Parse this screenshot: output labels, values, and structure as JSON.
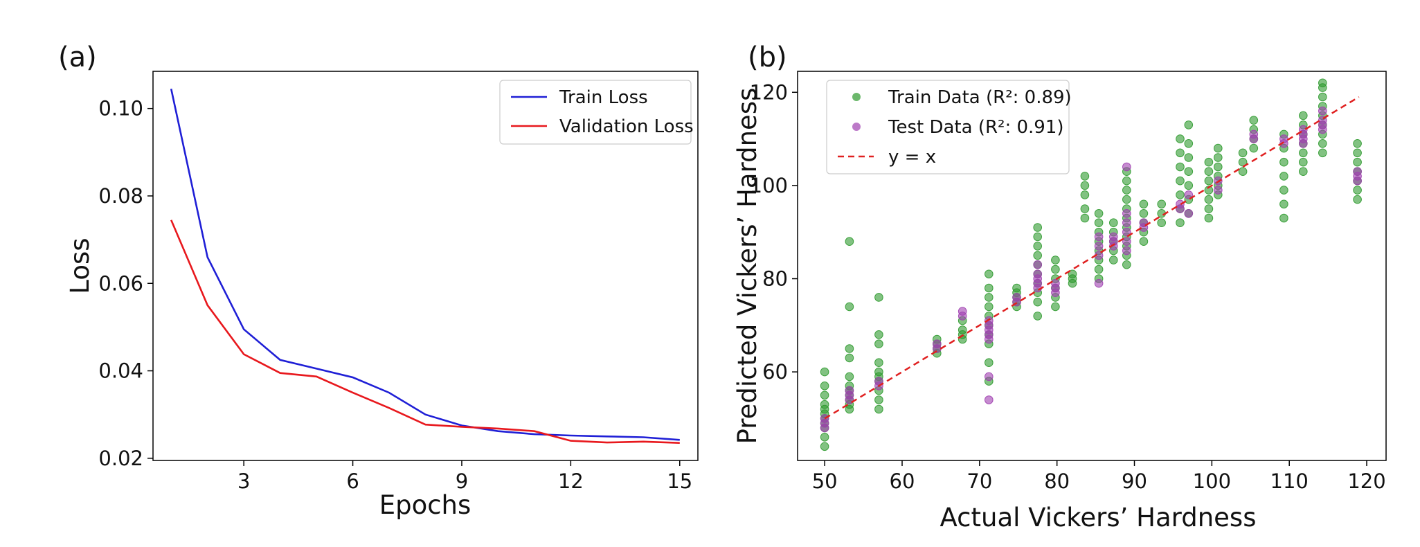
{
  "chart_data": [
    {
      "panel_label": "(a)",
      "type": "line",
      "title": "",
      "xlabel": "Epochs",
      "ylabel": "Loss",
      "xlim": [
        0.5,
        15.5
      ],
      "ylim": [
        0.0195,
        0.1085
      ],
      "xticks": [
        3,
        6,
        9,
        12,
        15
      ],
      "yticks": [
        0.02,
        0.04,
        0.06,
        0.08,
        0.1
      ],
      "ytick_labels": [
        "0.02",
        "0.04",
        "0.06",
        "0.08",
        "0.10"
      ],
      "grid": false,
      "legend_position": "top-right",
      "x": [
        1,
        2,
        3,
        4,
        5,
        6,
        7,
        8,
        9,
        10,
        11,
        12,
        13,
        14,
        15
      ],
      "series": [
        {
          "name": "Train Loss",
          "color": "#1f1fd6",
          "values": [
            0.1045,
            0.066,
            0.0495,
            0.0425,
            0.0405,
            0.0385,
            0.035,
            0.03,
            0.0275,
            0.0262,
            0.0255,
            0.0252,
            0.025,
            0.0248,
            0.0242
          ]
        },
        {
          "name": "Validation Loss",
          "color": "#e8181d",
          "values": [
            0.0745,
            0.055,
            0.0438,
            0.0395,
            0.0387,
            0.035,
            0.0315,
            0.0277,
            0.0272,
            0.0268,
            0.0262,
            0.024,
            0.0236,
            0.0238,
            0.0235
          ]
        }
      ]
    },
    {
      "panel_label": "(b)",
      "type": "scatter",
      "title": "",
      "xlabel": "Actual Vickers’ Hardness",
      "ylabel": "Predicted Vickers’ Hardness",
      "xlim": [
        46.5,
        122.5
      ],
      "ylim": [
        41,
        124.5
      ],
      "xticks": [
        50,
        60,
        70,
        80,
        90,
        100,
        110,
        120
      ],
      "yticks": [
        60,
        80,
        100,
        120
      ],
      "grid": false,
      "legend_position": "top-left",
      "series": [
        {
          "name": "Train Data (R²: 0.89)",
          "color": "#2e9a2e",
          "groups": [
            {
              "x": 50.0,
              "y": [
                44,
                46,
                48,
                49,
                50,
                51,
                52,
                53,
                55,
                57,
                60
              ]
            },
            {
              "x": 53.2,
              "y": [
                52,
                53,
                54,
                55,
                56,
                57,
                59,
                63,
                65,
                74,
                88
              ]
            },
            {
              "x": 57.0,
              "y": [
                52,
                54,
                56,
                58,
                59,
                60,
                62,
                66,
                68,
                76
              ]
            },
            {
              "x": 64.5,
              "y": [
                64,
                65,
                66,
                67
              ]
            },
            {
              "x": 67.8,
              "y": [
                67,
                68,
                69,
                71
              ]
            },
            {
              "x": 71.2,
              "y": [
                58,
                62,
                66,
                68,
                70,
                72,
                74,
                76,
                78,
                81
              ]
            },
            {
              "x": 74.8,
              "y": [
                74,
                75,
                76,
                77,
                78
              ]
            },
            {
              "x": 77.5,
              "y": [
                72,
                75,
                77,
                79,
                81,
                83,
                85,
                87,
                89,
                91
              ]
            },
            {
              "x": 79.8,
              "y": [
                74,
                76,
                78,
                80,
                82,
                84
              ]
            },
            {
              "x": 82.0,
              "y": [
                79,
                80,
                81
              ]
            },
            {
              "x": 83.6,
              "y": [
                93,
                95,
                98,
                100,
                102
              ]
            },
            {
              "x": 85.4,
              "y": [
                80,
                82,
                84,
                86,
                88,
                90,
                92,
                94
              ]
            },
            {
              "x": 87.3,
              "y": [
                84,
                86,
                88,
                90,
                92
              ]
            },
            {
              "x": 89.0,
              "y": [
                83,
                85,
                87,
                89,
                91,
                93,
                95,
                97,
                99,
                101,
                103
              ]
            },
            {
              "x": 91.2,
              "y": [
                88,
                90,
                92,
                94,
                96
              ]
            },
            {
              "x": 93.5,
              "y": [
                92,
                94,
                96
              ]
            },
            {
              "x": 95.9,
              "y": [
                92,
                95,
                98,
                101,
                104,
                107,
                110
              ]
            },
            {
              "x": 97.0,
              "y": [
                94,
                97,
                100,
                103,
                106,
                109,
                113
              ]
            },
            {
              "x": 99.6,
              "y": [
                93,
                95,
                97,
                99,
                101,
                103,
                105
              ]
            },
            {
              "x": 100.8,
              "y": [
                98,
                100,
                102,
                104,
                106,
                108
              ]
            },
            {
              "x": 104.0,
              "y": [
                103,
                105,
                107
              ]
            },
            {
              "x": 105.4,
              "y": [
                108,
                110,
                112,
                114
              ]
            },
            {
              "x": 109.3,
              "y": [
                93,
                96,
                99,
                102,
                105,
                108,
                111
              ]
            },
            {
              "x": 111.8,
              "y": [
                103,
                105,
                107,
                109,
                111,
                113,
                115
              ]
            },
            {
              "x": 114.3,
              "y": [
                107,
                109,
                111,
                113,
                115,
                117,
                119,
                121,
                122
              ]
            },
            {
              "x": 118.8,
              "y": [
                97,
                99,
                101,
                103,
                105,
                107,
                109
              ]
            }
          ]
        },
        {
          "name": "Test Data (R²: 0.91)",
          "color": "#a040b0",
          "groups": [
            {
              "x": 50.0,
              "y": [
                48,
                49,
                50
              ]
            },
            {
              "x": 53.2,
              "y": [
                54,
                55,
                56
              ]
            },
            {
              "x": 57.0,
              "y": [
                57,
                58
              ]
            },
            {
              "x": 64.5,
              "y": [
                65,
                66
              ]
            },
            {
              "x": 67.8,
              "y": [
                72,
                73
              ]
            },
            {
              "x": 71.2,
              "y": [
                54,
                59,
                67,
                68,
                69,
                70,
                71
              ]
            },
            {
              "x": 74.8,
              "y": [
                75,
                76
              ]
            },
            {
              "x": 77.5,
              "y": [
                78,
                79,
                80,
                81,
                83
              ]
            },
            {
              "x": 79.8,
              "y": [
                77,
                78,
                79
              ]
            },
            {
              "x": 85.4,
              "y": [
                79,
                85,
                87,
                89
              ]
            },
            {
              "x": 87.3,
              "y": [
                87,
                88,
                89
              ]
            },
            {
              "x": 89.0,
              "y": [
                86,
                88,
                90,
                92,
                94,
                104
              ]
            },
            {
              "x": 91.2,
              "y": [
                91,
                92
              ]
            },
            {
              "x": 95.9,
              "y": [
                95,
                96
              ]
            },
            {
              "x": 97.0,
              "y": [
                94,
                98
              ]
            },
            {
              "x": 100.8,
              "y": [
                99,
                101
              ]
            },
            {
              "x": 105.4,
              "y": [
                110,
                111
              ]
            },
            {
              "x": 109.3,
              "y": [
                109,
                110
              ]
            },
            {
              "x": 111.8,
              "y": [
                109,
                110,
                111,
                112
              ]
            },
            {
              "x": 114.3,
              "y": [
                112,
                113,
                114,
                116
              ]
            },
            {
              "x": 118.8,
              "y": [
                101,
                102,
                103
              ]
            }
          ]
        }
      ],
      "reference_line": {
        "name": "y = x",
        "color": "#e02020",
        "style": "dashed",
        "x": [
          50,
          119
        ],
        "y": [
          50,
          119
        ]
      }
    }
  ]
}
